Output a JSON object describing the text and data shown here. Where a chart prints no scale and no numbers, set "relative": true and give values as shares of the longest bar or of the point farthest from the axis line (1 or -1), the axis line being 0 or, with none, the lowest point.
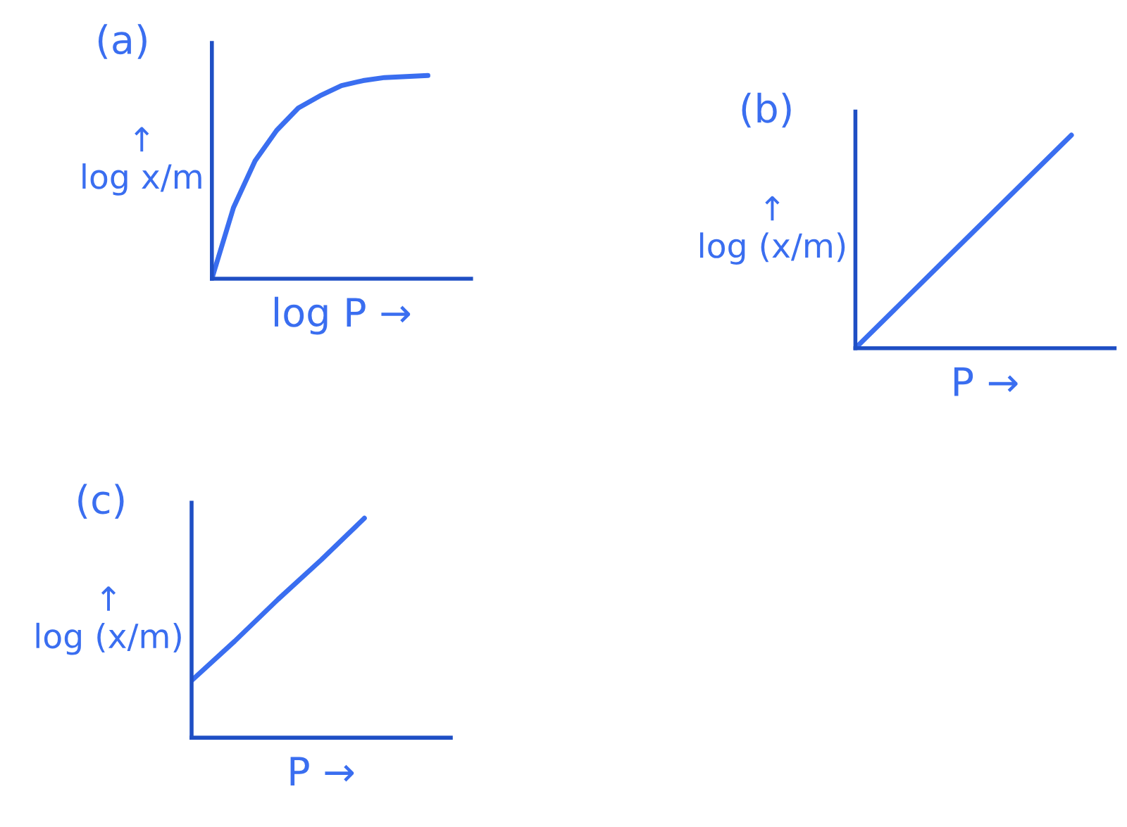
{
  "chart_data": [
    {
      "type": "line",
      "relative": true,
      "title": "(a)",
      "xlabel": "log P →",
      "ylabel": "↑\nlog x/m",
      "color": "#3a6ef0",
      "categories": [
        null,
        null,
        null,
        null,
        null,
        null,
        null,
        null,
        null,
        null,
        null,
        null,
        null
      ],
      "values": [
        0,
        0.35,
        0.58,
        0.73,
        0.84,
        0.9,
        0.95,
        0.975,
        0.99,
        0.995,
        1.0,
        null,
        null
      ]
    },
    {
      "type": "line",
      "relative": true,
      "title": "(b)",
      "xlabel": "P →",
      "ylabel": "↑\nlog (x/m)",
      "color": "#3a6ef0",
      "categories": [
        null,
        null,
        null,
        null,
        null,
        null,
        null
      ],
      "values": [
        0,
        0.2,
        0.4,
        0.6,
        0.8,
        1.0,
        null
      ]
    },
    {
      "type": "line",
      "relative": true,
      "title": "(c)",
      "xlabel": "P →",
      "ylabel": "↑\nlog (x/m)",
      "color": "#3a6ef0",
      "categories": [
        null,
        null,
        null,
        null,
        null,
        null,
        null
      ],
      "values": [
        0.26,
        0.44,
        0.63,
        0.81,
        1.0,
        null,
        null
      ]
    }
  ]
}
